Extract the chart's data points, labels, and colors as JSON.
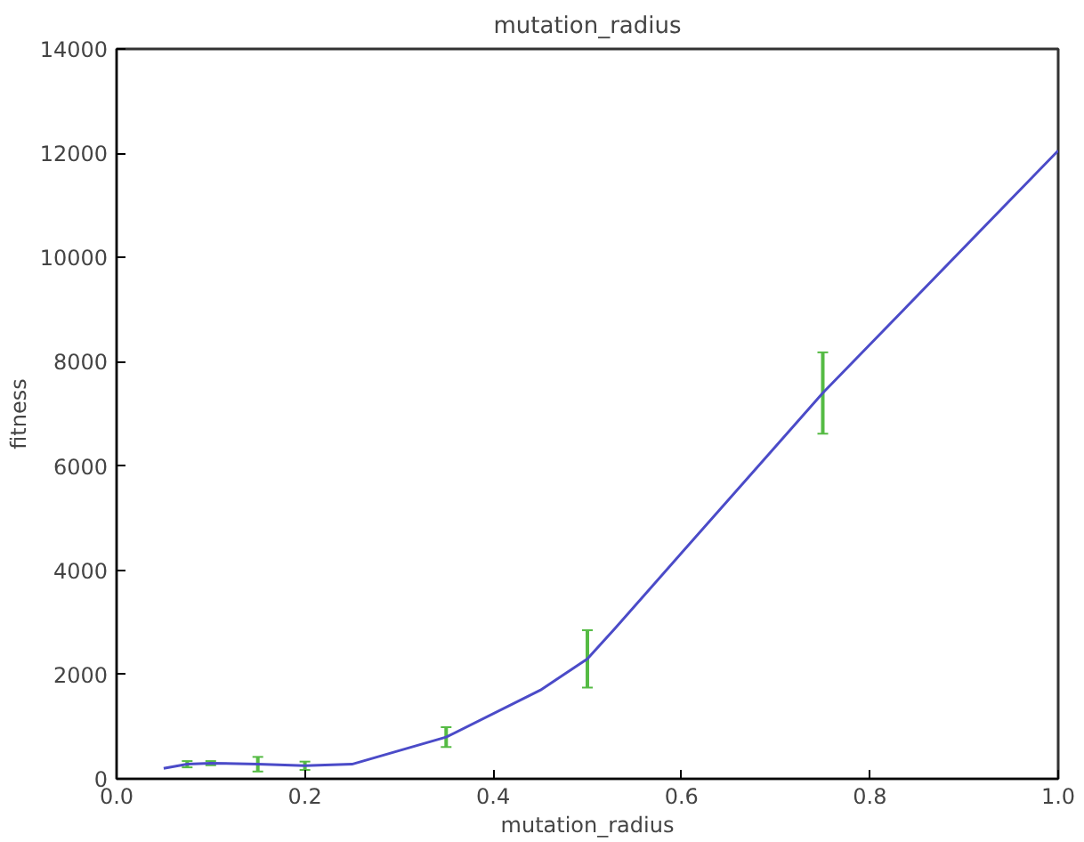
{
  "chart_data": {
    "type": "line",
    "title": "mutation_radius",
    "xlabel": "mutation_radius",
    "ylabel": "fitness",
    "x": [
      0.05,
      0.075,
      0.1,
      0.15,
      0.2,
      0.25,
      0.35,
      0.45,
      0.5,
      0.53,
      0.75,
      1.0
    ],
    "series": [
      {
        "color": "#4b4bc8",
        "values": [
          200,
          280,
          300,
          280,
          250,
          280,
          800,
          1700,
          2300,
          2900,
          7400,
          12050
        ],
        "errors": [
          null,
          60,
          40,
          140,
          80,
          null,
          190,
          null,
          550,
          null,
          780,
          null
        ]
      }
    ],
    "xlim": [
      0.0,
      1.0
    ],
    "ylim": [
      0,
      14000
    ],
    "xticks": [
      {
        "value": 0.0,
        "label": "0.0"
      },
      {
        "value": 0.2,
        "label": "0.2"
      },
      {
        "value": 0.4,
        "label": "0.4"
      },
      {
        "value": 0.6,
        "label": "0.6"
      },
      {
        "value": 0.8,
        "label": "0.8"
      },
      {
        "value": 1.0,
        "label": "1.0"
      }
    ],
    "yticks": [
      0,
      2000,
      4000,
      6000,
      8000,
      10000,
      12000,
      14000
    ],
    "grid": false,
    "marker": "none",
    "line_style": "solid"
  }
}
